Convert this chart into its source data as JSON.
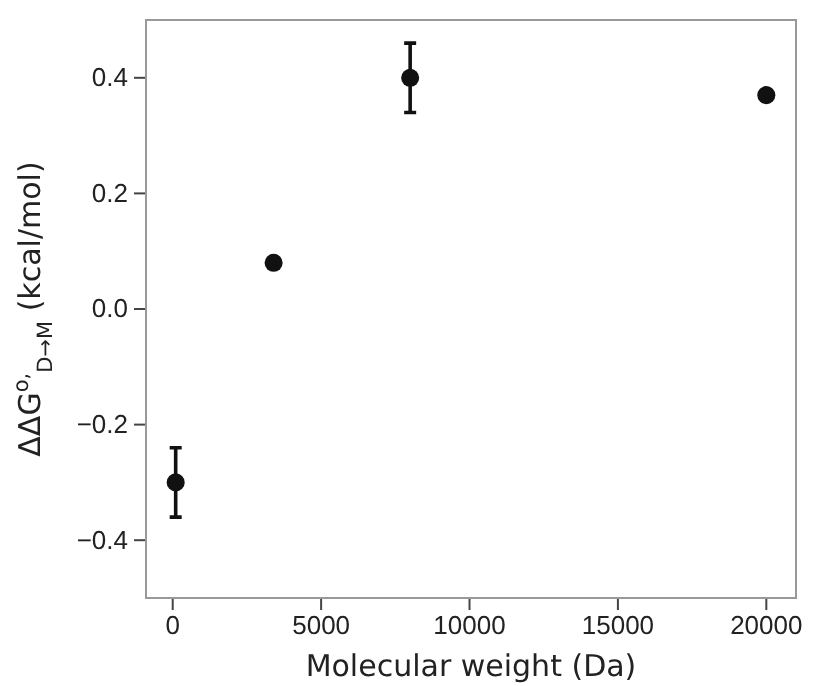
{
  "chart_data": {
    "type": "scatter",
    "xlabel": "Molecular weight (Da)",
    "ylabel": "ΔΔG$^{o,}$$_{D→M}$ (kcal/mol)",
    "x": [
      100,
      3400,
      8000,
      20000
    ],
    "series": [
      {
        "color": "#111111",
        "values": [
          -0.3,
          0.08,
          0.4,
          0.37
        ],
        "errors": [
          0.06,
          null,
          0.06,
          null
        ]
      }
    ],
    "xlim": [
      -900,
      21000
    ],
    "xticks": [
      0,
      5000,
      10000,
      15000,
      20000
    ],
    "ylim": [
      -0.5,
      0.5
    ],
    "yticks": [
      {
        "value": -0.4,
        "label": "−0.4"
      },
      {
        "value": -0.2,
        "label": "−0.2"
      },
      {
        "value": 0,
        "label": "0.0"
      },
      {
        "value": 0.2,
        "label": "0.2"
      },
      {
        "value": 0.4,
        "label": "0.4"
      }
    ],
    "marker": "circle",
    "grid": false
  }
}
